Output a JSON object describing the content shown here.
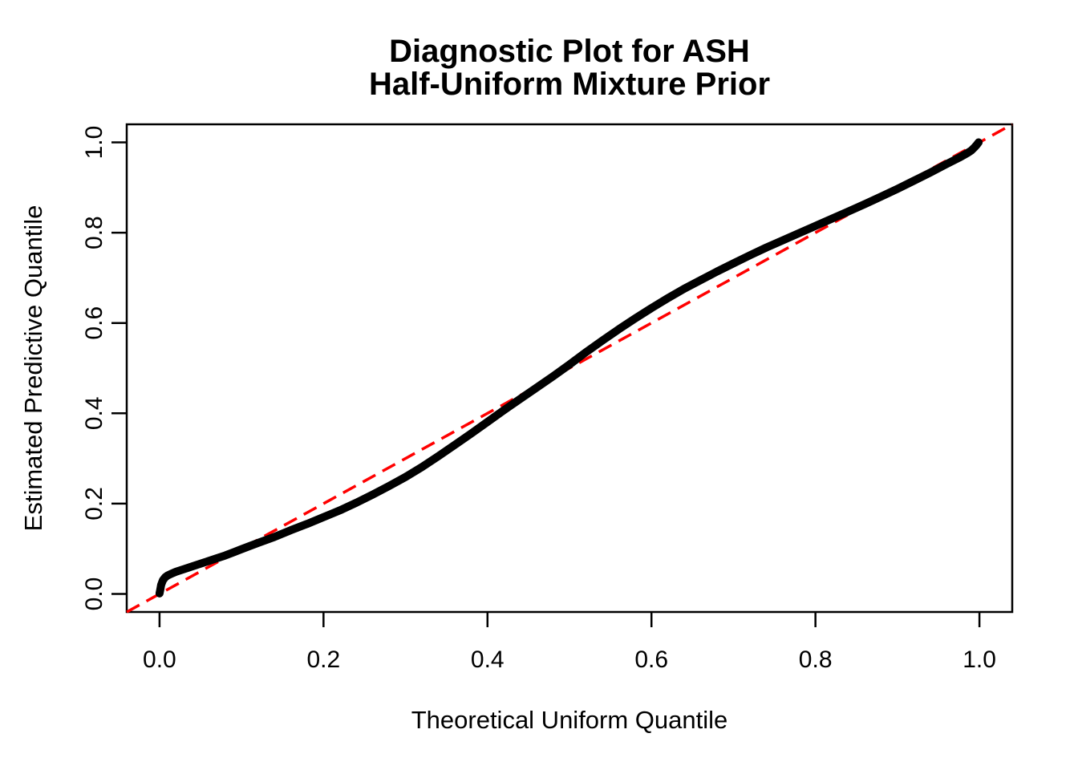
{
  "chart_data": {
    "type": "scatter",
    "title_lines": [
      "Diagnostic Plot for ASH",
      "Half-Uniform Mixture Prior"
    ],
    "xlabel": "Theoretical Uniform Quantile",
    "ylabel": "Estimated Predictive Quantile",
    "xlim": [
      -0.04,
      1.04
    ],
    "ylim": [
      -0.04,
      1.04
    ],
    "grid": false,
    "legend": "none",
    "x_ticks": [
      0.0,
      0.2,
      0.4,
      0.6,
      0.8,
      1.0
    ],
    "y_ticks": [
      0.0,
      0.2,
      0.4,
      0.6,
      0.8,
      1.0
    ],
    "x_tick_labels": [
      "0.0",
      "0.2",
      "0.4",
      "0.6",
      "0.8",
      "1.0"
    ],
    "y_tick_labels": [
      "0.0",
      "0.2",
      "0.4",
      "0.6",
      "0.8",
      "1.0"
    ],
    "reference_line": {
      "name": "identity-line",
      "intercept": 0,
      "slope": 1,
      "color": "#FF0000",
      "style": "dashed"
    },
    "series": [
      {
        "name": "estimated-predictive-quantile-vs-theoretical",
        "color": "#000000",
        "marker": "point",
        "points": [
          [
            0.0,
            0.001
          ],
          [
            0.001,
            0.01
          ],
          [
            0.002,
            0.02
          ],
          [
            0.004,
            0.03
          ],
          [
            0.007,
            0.037
          ],
          [
            0.01,
            0.041
          ],
          [
            0.015,
            0.045
          ],
          [
            0.02,
            0.049
          ],
          [
            0.03,
            0.055
          ],
          [
            0.04,
            0.061
          ],
          [
            0.05,
            0.067
          ],
          [
            0.06,
            0.073
          ],
          [
            0.07,
            0.079
          ],
          [
            0.08,
            0.085
          ],
          [
            0.09,
            0.092
          ],
          [
            0.1,
            0.099
          ],
          [
            0.11,
            0.106
          ],
          [
            0.12,
            0.113
          ],
          [
            0.14,
            0.126
          ],
          [
            0.16,
            0.141
          ],
          [
            0.18,
            0.155
          ],
          [
            0.2,
            0.17
          ],
          [
            0.22,
            0.185
          ],
          [
            0.24,
            0.202
          ],
          [
            0.26,
            0.22
          ],
          [
            0.28,
            0.239
          ],
          [
            0.3,
            0.259
          ],
          [
            0.32,
            0.281
          ],
          [
            0.34,
            0.305
          ],
          [
            0.36,
            0.33
          ],
          [
            0.38,
            0.355
          ],
          [
            0.4,
            0.381
          ],
          [
            0.42,
            0.407
          ],
          [
            0.44,
            0.432
          ],
          [
            0.46,
            0.457
          ],
          [
            0.48,
            0.482
          ],
          [
            0.5,
            0.508
          ],
          [
            0.52,
            0.535
          ],
          [
            0.54,
            0.561
          ],
          [
            0.56,
            0.586
          ],
          [
            0.58,
            0.61
          ],
          [
            0.6,
            0.633
          ],
          [
            0.62,
            0.655
          ],
          [
            0.64,
            0.676
          ],
          [
            0.66,
            0.695
          ],
          [
            0.68,
            0.714
          ],
          [
            0.7,
            0.732
          ],
          [
            0.72,
            0.75
          ],
          [
            0.74,
            0.767
          ],
          [
            0.76,
            0.783
          ],
          [
            0.78,
            0.799
          ],
          [
            0.8,
            0.815
          ],
          [
            0.82,
            0.831
          ],
          [
            0.84,
            0.847
          ],
          [
            0.86,
            0.863
          ],
          [
            0.88,
            0.88
          ],
          [
            0.9,
            0.897
          ],
          [
            0.92,
            0.915
          ],
          [
            0.94,
            0.933
          ],
          [
            0.96,
            0.952
          ],
          [
            0.975,
            0.966
          ],
          [
            0.985,
            0.976
          ],
          [
            0.99,
            0.982
          ],
          [
            0.994,
            0.989
          ],
          [
            0.997,
            0.995
          ],
          [
            0.999,
            1.0
          ]
        ]
      }
    ]
  },
  "colors": {
    "background": "#FFFFFF",
    "curve": "#000000",
    "reference_line": "#FF0000",
    "axis": "#000000",
    "text": "#000000"
  }
}
